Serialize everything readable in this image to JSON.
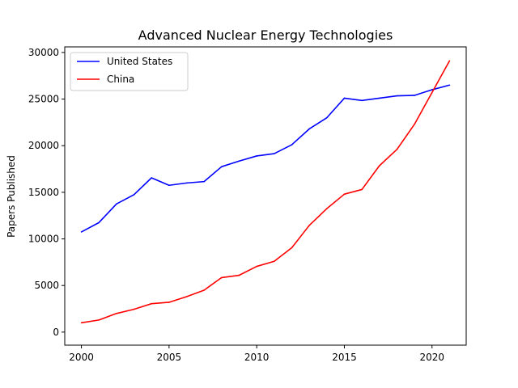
{
  "chart_data": {
    "type": "line",
    "title": "Advanced Nuclear Energy Technologies",
    "xlabel": "",
    "ylabel": "Papers Published",
    "xlim": [
      1999.05,
      2021.95
    ],
    "ylim": [
      -1400,
      30600
    ],
    "xticks": [
      2000,
      2005,
      2010,
      2015,
      2020
    ],
    "yticks": [
      0,
      5000,
      10000,
      15000,
      20000,
      25000,
      30000
    ],
    "grid": false,
    "legend_position": "upper-left",
    "x": [
      2000,
      2001,
      2002,
      2003,
      2004,
      2005,
      2006,
      2007,
      2008,
      2009,
      2010,
      2011,
      2012,
      2013,
      2014,
      2015,
      2016,
      2017,
      2018,
      2019,
      2020,
      2021
    ],
    "series": [
      {
        "name": "United States",
        "color": "#0000ff",
        "values": [
          10750,
          11750,
          13750,
          14750,
          16550,
          15750,
          16000,
          16150,
          17750,
          18350,
          18900,
          19150,
          20100,
          21800,
          23000,
          25100,
          24850,
          25100,
          25350,
          25400,
          26000,
          26500
        ]
      },
      {
        "name": "China",
        "color": "#ff0000",
        "values": [
          1000,
          1300,
          2000,
          2450,
          3050,
          3200,
          3800,
          4500,
          5850,
          6100,
          7050,
          7600,
          9050,
          11450,
          13250,
          14800,
          15300,
          17850,
          19600,
          22300,
          25700,
          29100
        ]
      }
    ]
  }
}
